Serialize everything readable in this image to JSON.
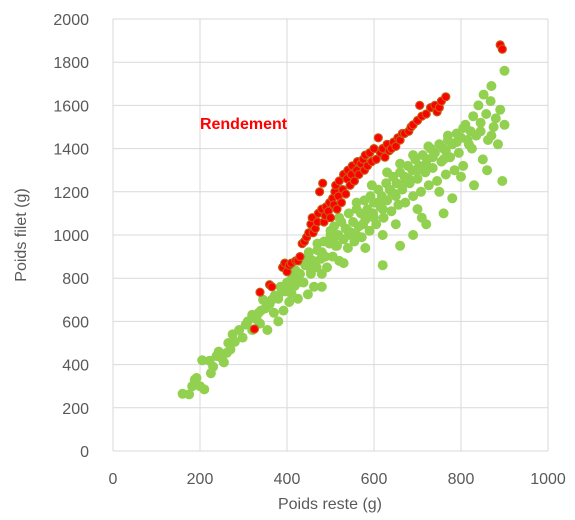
{
  "chart_data": {
    "type": "scatter",
    "title": "",
    "xlabel": "Poids reste (g)",
    "ylabel": "Poids filet (g)",
    "xlim": [
      0,
      1000
    ],
    "ylim": [
      0,
      2000
    ],
    "xticks": [
      0,
      200,
      400,
      600,
      800,
      1000
    ],
    "yticks": [
      0,
      200,
      400,
      600,
      800,
      1000,
      1200,
      1400,
      1600,
      1800,
      2000
    ],
    "grid": true,
    "legend": "none",
    "annotations": [
      {
        "text": "Rendement",
        "x": 300,
        "y": 1490,
        "color": "#ff0000"
      }
    ],
    "series": [
      {
        "color": "#92d050",
        "points": [
          [
            160,
            265
          ],
          [
            175,
            262
          ],
          [
            182,
            300
          ],
          [
            188,
            330
          ],
          [
            192,
            338
          ],
          [
            200,
            300
          ],
          [
            210,
            285
          ],
          [
            205,
            420
          ],
          [
            222,
            418
          ],
          [
            225,
            360
          ],
          [
            230,
            390
          ],
          [
            238,
            440
          ],
          [
            243,
            460
          ],
          [
            250,
            430
          ],
          [
            255,
            410
          ],
          [
            262,
            455
          ],
          [
            270,
            470
          ],
          [
            265,
            500
          ],
          [
            275,
            540
          ],
          [
            280,
            505
          ],
          [
            290,
            560
          ],
          [
            298,
            525
          ],
          [
            305,
            585
          ],
          [
            310,
            600
          ],
          [
            320,
            560
          ],
          [
            320,
            630
          ],
          [
            330,
            610
          ],
          [
            340,
            650
          ],
          [
            338,
            590
          ],
          [
            350,
            660
          ],
          [
            345,
            700
          ],
          [
            355,
            560
          ],
          [
            360,
            690
          ],
          [
            370,
            640
          ],
          [
            372,
            720
          ],
          [
            380,
            705
          ],
          [
            385,
            760
          ],
          [
            392,
            650
          ],
          [
            395,
            740
          ],
          [
            400,
            780
          ],
          [
            405,
            690
          ],
          [
            410,
            730
          ],
          [
            412,
            800
          ],
          [
            418,
            765
          ],
          [
            420,
            835
          ],
          [
            425,
            705
          ],
          [
            430,
            820
          ],
          [
            438,
            780
          ],
          [
            442,
            860
          ],
          [
            448,
            725
          ],
          [
            450,
            900
          ],
          [
            455,
            820
          ],
          [
            460,
            880
          ],
          [
            462,
            760
          ],
          [
            468,
            850
          ],
          [
            470,
            930
          ],
          [
            478,
            890
          ],
          [
            480,
            820
          ],
          [
            485,
            970
          ],
          [
            488,
            900
          ],
          [
            492,
            850
          ],
          [
            498,
            960
          ],
          [
            500,
            1000
          ],
          [
            505,
            900
          ],
          [
            508,
            1040
          ],
          [
            512,
            950
          ],
          [
            518,
            1000
          ],
          [
            520,
            880
          ],
          [
            525,
            1060
          ],
          [
            530,
            980
          ],
          [
            535,
            1030
          ],
          [
            540,
            940
          ],
          [
            542,
            1100
          ],
          [
            548,
            1010
          ],
          [
            552,
            1060
          ],
          [
            555,
            970
          ],
          [
            560,
            1120
          ],
          [
            565,
            1040
          ],
          [
            570,
            1100
          ],
          [
            572,
            990
          ],
          [
            578,
            1160
          ],
          [
            580,
            1070
          ],
          [
            585,
            1120
          ],
          [
            590,
            1020
          ],
          [
            592,
            1180
          ],
          [
            598,
            1100
          ],
          [
            600,
            1150
          ],
          [
            605,
            1050
          ],
          [
            610,
            1210
          ],
          [
            615,
            1130
          ],
          [
            618,
            1180
          ],
          [
            622,
            1080
          ],
          [
            628,
            1240
          ],
          [
            630,
            1160
          ],
          [
            636,
            1210
          ],
          [
            640,
            1110
          ],
          [
            644,
            1270
          ],
          [
            648,
            1190
          ],
          [
            652,
            1240
          ],
          [
            656,
            1140
          ],
          [
            660,
            1290
          ],
          [
            665,
            1210
          ],
          [
            670,
            1270
          ],
          [
            672,
            1150
          ],
          [
            678,
            1320
          ],
          [
            682,
            1240
          ],
          [
            688,
            1300
          ],
          [
            690,
            1180
          ],
          [
            695,
            1350
          ],
          [
            700,
            1260
          ],
          [
            704,
            1320
          ],
          [
            708,
            1200
          ],
          [
            712,
            1370
          ],
          [
            718,
            1290
          ],
          [
            722,
            1350
          ],
          [
            726,
            1230
          ],
          [
            730,
            1400
          ],
          [
            735,
            1310
          ],
          [
            740,
            1380
          ],
          [
            745,
            1250
          ],
          [
            750,
            1420
          ],
          [
            755,
            1340
          ],
          [
            760,
            1400
          ],
          [
            765,
            1280
          ],
          [
            770,
            1460
          ],
          [
            775,
            1360
          ],
          [
            780,
            1420
          ],
          [
            785,
            1300
          ],
          [
            790,
            1470
          ],
          [
            795,
            1380
          ],
          [
            800,
            1450
          ],
          [
            805,
            1320
          ],
          [
            810,
            1510
          ],
          [
            818,
            1420
          ],
          [
            822,
            1480
          ],
          [
            828,
            1550
          ],
          [
            835,
            1460
          ],
          [
            840,
            1600
          ],
          [
            845,
            1520
          ],
          [
            852,
            1650
          ],
          [
            858,
            1560
          ],
          [
            862,
            1440
          ],
          [
            868,
            1620
          ],
          [
            870,
            1690
          ],
          [
            875,
            1500
          ],
          [
            880,
            1540
          ],
          [
            885,
            1420
          ],
          [
            890,
            1580
          ],
          [
            895,
            1250
          ],
          [
            900,
            1510
          ],
          [
            900,
            1760
          ],
          [
            560,
            1000
          ],
          [
            590,
            1090
          ],
          [
            620,
            1120
          ],
          [
            650,
            1180
          ],
          [
            540,
            1020
          ],
          [
            510,
            990
          ],
          [
            480,
            920
          ],
          [
            460,
            850
          ],
          [
            700,
            1300
          ],
          [
            720,
            1330
          ],
          [
            760,
            1350
          ],
          [
            790,
            1430
          ],
          [
            680,
            1260
          ],
          [
            610,
            1150
          ],
          [
            440,
            880
          ],
          [
            420,
            810
          ],
          [
            400,
            760
          ],
          [
            380,
            720
          ],
          [
            360,
            680
          ],
          [
            620,
            1000
          ],
          [
            650,
            1050
          ],
          [
            700,
            1120
          ],
          [
            580,
            940
          ],
          [
            530,
            870
          ],
          [
            750,
            1200
          ],
          [
            800,
            1270
          ],
          [
            830,
            1230
          ],
          [
            760,
            1100
          ],
          [
            690,
            1000
          ],
          [
            480,
            760
          ],
          [
            380,
            600
          ],
          [
            620,
            860
          ],
          [
            660,
            950
          ],
          [
            720,
            1050
          ],
          [
            850,
            1350
          ],
          [
            860,
            1300
          ],
          [
            870,
            1460
          ],
          [
            780,
            1170
          ],
          [
            710,
            1080
          ],
          [
            600,
            1080
          ],
          [
            575,
            1050
          ],
          [
            545,
            1000
          ],
          [
            515,
            950
          ],
          [
            485,
            900
          ],
          [
            455,
            830
          ],
          [
            425,
            780
          ],
          [
            395,
            740
          ],
          [
            365,
            700
          ],
          [
            335,
            640
          ],
          [
            640,
            1200
          ],
          [
            670,
            1240
          ],
          [
            735,
            1360
          ],
          [
            765,
            1390
          ],
          [
            815,
            1440
          ],
          [
            825,
            1400
          ],
          [
            845,
            1480
          ],
          [
            560,
            1150
          ],
          [
            520,
            1080
          ],
          [
            500,
            1020
          ],
          [
            470,
            960
          ],
          [
            450,
            920
          ],
          [
            430,
            880
          ],
          [
            410,
            840
          ],
          [
            595,
            1230
          ],
          [
            630,
            1290
          ],
          [
            660,
            1330
          ],
          [
            690,
            1370
          ],
          [
            725,
            1410
          ],
          [
            805,
            1495
          ],
          [
            770,
            1440
          ]
        ]
      },
      {
        "color": "#ff0000",
        "points": [
          [
            325,
            565
          ],
          [
            338,
            735
          ],
          [
            360,
            770
          ],
          [
            365,
            760
          ],
          [
            390,
            850
          ],
          [
            395,
            870
          ],
          [
            400,
            830
          ],
          [
            405,
            860
          ],
          [
            410,
            870
          ],
          [
            420,
            880
          ],
          [
            425,
            880
          ],
          [
            430,
            900
          ],
          [
            435,
            960
          ],
          [
            440,
            970
          ],
          [
            445,
            990
          ],
          [
            450,
            1010
          ],
          [
            455,
            1050
          ],
          [
            458,
            1080
          ],
          [
            460,
            1010
          ],
          [
            465,
            1030
          ],
          [
            470,
            1060
          ],
          [
            472,
            1100
          ],
          [
            475,
            1200
          ],
          [
            480,
            1120
          ],
          [
            482,
            1240
          ],
          [
            485,
            1060
          ],
          [
            488,
            1090
          ],
          [
            490,
            1130
          ],
          [
            495,
            1110
          ],
          [
            498,
            1150
          ],
          [
            500,
            1080
          ],
          [
            505,
            1170
          ],
          [
            508,
            1140
          ],
          [
            510,
            1200
          ],
          [
            512,
            1230
          ],
          [
            515,
            1120
          ],
          [
            518,
            1180
          ],
          [
            520,
            1250
          ],
          [
            525,
            1150
          ],
          [
            528,
            1210
          ],
          [
            530,
            1280
          ],
          [
            535,
            1190
          ],
          [
            538,
            1260
          ],
          [
            540,
            1300
          ],
          [
            545,
            1230
          ],
          [
            548,
            1280
          ],
          [
            550,
            1320
          ],
          [
            555,
            1250
          ],
          [
            560,
            1300
          ],
          [
            562,
            1340
          ],
          [
            565,
            1280
          ],
          [
            570,
            1330
          ],
          [
            575,
            1350
          ],
          [
            578,
            1300
          ],
          [
            580,
            1370
          ],
          [
            585,
            1320
          ],
          [
            590,
            1380
          ],
          [
            595,
            1340
          ],
          [
            600,
            1400
          ],
          [
            605,
            1350
          ],
          [
            610,
            1450
          ],
          [
            615,
            1380
          ],
          [
            620,
            1400
          ],
          [
            625,
            1360
          ],
          [
            630,
            1420
          ],
          [
            635,
            1390
          ],
          [
            640,
            1400
          ],
          [
            645,
            1430
          ],
          [
            650,
            1410
          ],
          [
            655,
            1450
          ],
          [
            660,
            1440
          ],
          [
            665,
            1470
          ],
          [
            670,
            1470
          ],
          [
            680,
            1480
          ],
          [
            685,
            1500
          ],
          [
            690,
            1510
          ],
          [
            700,
            1530
          ],
          [
            705,
            1600
          ],
          [
            710,
            1550
          ],
          [
            720,
            1560
          ],
          [
            730,
            1590
          ],
          [
            740,
            1600
          ],
          [
            745,
            1570
          ],
          [
            750,
            1590
          ],
          [
            755,
            1620
          ],
          [
            765,
            1640
          ],
          [
            890,
            1880
          ],
          [
            895,
            1860
          ]
        ]
      }
    ]
  }
}
